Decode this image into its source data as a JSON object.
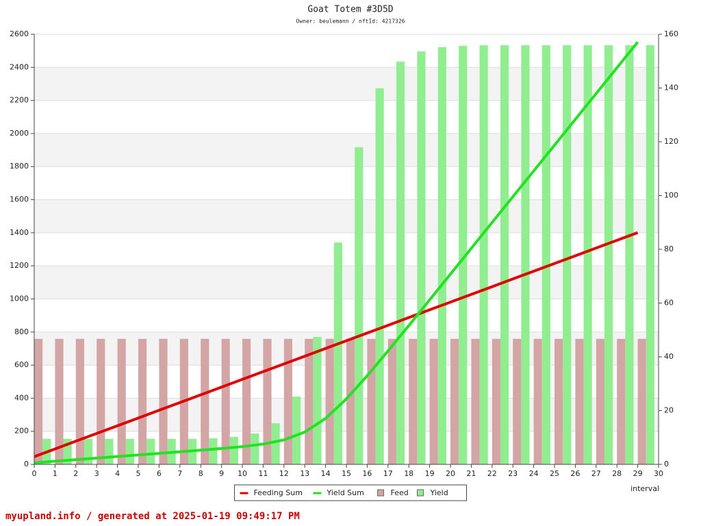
{
  "chart_data": {
    "type": "combo",
    "title": "Goat Totem #3D5D",
    "subtitle": "Owner: beulemann / nftId: 4217326",
    "x_label": "interval",
    "footer": "myupland.info / generated at 2025-01-19 09:49:17 PM",
    "x": [
      0,
      1,
      2,
      3,
      4,
      5,
      6,
      7,
      8,
      9,
      10,
      11,
      12,
      13,
      14,
      15,
      16,
      17,
      18,
      19,
      20,
      21,
      22,
      23,
      24,
      25,
      26,
      27,
      28,
      29
    ],
    "xlim": [
      0,
      30
    ],
    "xticks": [
      0,
      1,
      2,
      3,
      4,
      5,
      6,
      7,
      8,
      9,
      10,
      11,
      12,
      13,
      14,
      15,
      16,
      17,
      18,
      19,
      20,
      21,
      22,
      23,
      24,
      25,
      26,
      27,
      28,
      29,
      30
    ],
    "ylim": [
      0,
      2600
    ],
    "yticks": [
      0,
      200,
      400,
      600,
      800,
      1000,
      1200,
      1400,
      1600,
      1800,
      2000,
      2200,
      2400,
      2600
    ],
    "y2lim": [
      0,
      160
    ],
    "y2ticks": [
      0,
      20,
      40,
      60,
      80,
      100,
      120,
      140,
      160
    ],
    "grid": true,
    "legend": "bottom",
    "series": [
      {
        "name": "Feeding Sum",
        "type": "line",
        "color": "#e00000",
        "values": [
          46.7,
          93.4,
          140.1,
          186.8,
          233.5,
          280.2,
          326.9,
          373.6,
          420.3,
          467,
          513.7,
          560.4,
          607.1,
          653.8,
          700.5,
          747.2,
          793.9,
          840.6,
          887.3,
          934,
          980.7,
          1027.4,
          1074.1,
          1120.8,
          1167.5,
          1214.2,
          1260.9,
          1307.6,
          1354.3,
          1401
        ]
      },
      {
        "name": "Yield Sum",
        "type": "line",
        "color": "#22e222",
        "values": [
          9.5,
          19,
          28.5,
          38,
          47.5,
          57,
          66.5,
          76,
          85.7,
          95.9,
          107.4,
          122.7,
          147.9,
          195.3,
          277.8,
          395.8,
          535.7,
          685.5,
          839.1,
          994.3,
          1150,
          1305.9,
          1461.8,
          1617.7,
          1773.6,
          1929.5,
          2085.4,
          2241.3,
          2397.2,
          2553.1
        ]
      },
      {
        "name": "Feed",
        "type": "bar",
        "axis": "y2",
        "color": "#d4a5a5",
        "values": [
          46.7,
          46.7,
          46.7,
          46.7,
          46.7,
          46.7,
          46.7,
          46.7,
          46.7,
          46.7,
          46.7,
          46.7,
          46.7,
          46.7,
          46.7,
          46.7,
          46.7,
          46.7,
          46.7,
          46.7,
          46.7,
          46.7,
          46.7,
          46.7,
          46.7,
          46.7,
          46.7,
          46.7,
          46.7,
          46.7
        ]
      },
      {
        "name": "Yield",
        "type": "bar",
        "axis": "y2",
        "color": "#90ee90",
        "values": [
          9.5,
          9.5,
          9.5,
          9.5,
          9.5,
          9.5,
          9.5,
          9.5,
          9.7,
          10.2,
          11.5,
          15.3,
          25.2,
          47.4,
          82.5,
          118,
          139.9,
          149.8,
          153.6,
          155.2,
          155.7,
          155.9,
          155.9,
          155.9,
          155.9,
          155.9,
          155.9,
          155.9,
          155.9,
          155.9
        ]
      }
    ]
  }
}
